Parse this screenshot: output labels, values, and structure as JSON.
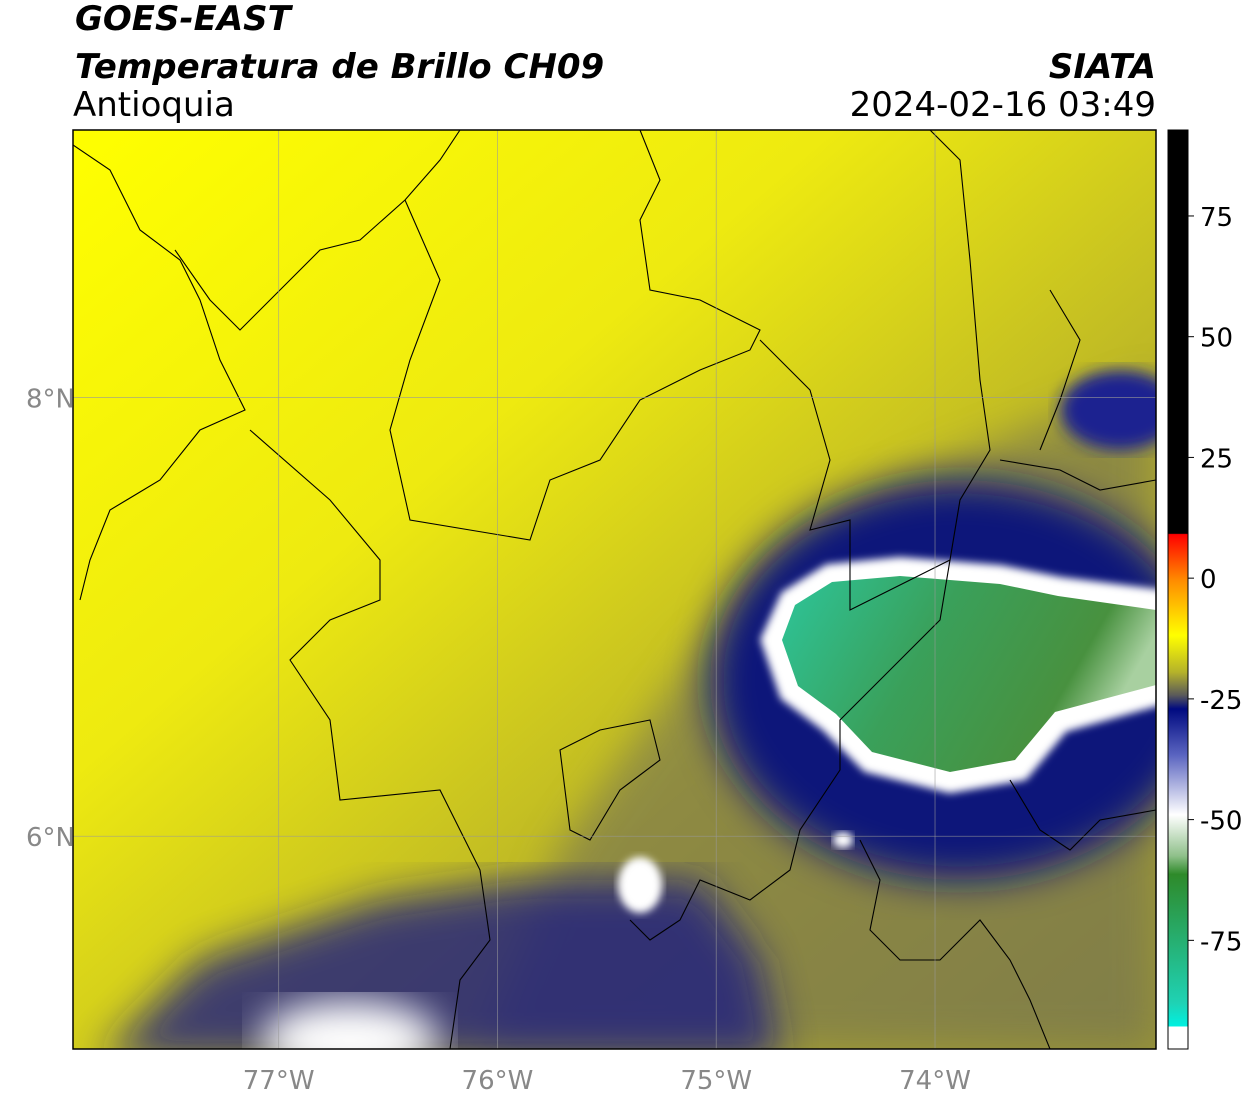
{
  "header": {
    "title": "GOES-EAST",
    "subtitle": "Temperatura de Brillo CH09",
    "region": "Antioquia",
    "source": "SIATA",
    "datetime": "2024-02-16 03:49"
  },
  "map": {
    "lonlim": [
      -77.94,
      -72.99
    ],
    "latlim": [
      5.03,
      9.22
    ],
    "lon_ticks": [
      {
        "value": -77,
        "label": "77°W"
      },
      {
        "value": -76,
        "label": "76°W"
      },
      {
        "value": -75,
        "label": "75°W"
      },
      {
        "value": -74,
        "label": "74°W"
      }
    ],
    "lat_ticks": [
      {
        "value": 8,
        "label": "8°N"
      },
      {
        "value": 6,
        "label": "6°N"
      }
    ]
  },
  "colorbar": {
    "lim": [
      -97.5,
      92.8
    ],
    "ticks": [
      75,
      50,
      25,
      0,
      -25,
      -50,
      -75
    ]
  }
}
